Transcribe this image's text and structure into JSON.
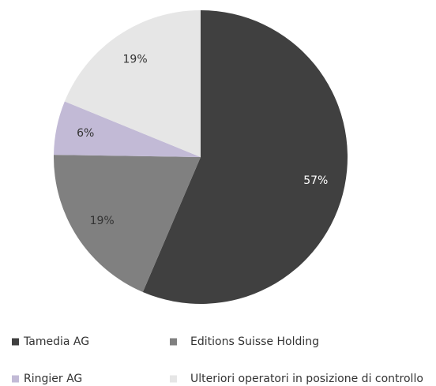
{
  "chart_data": {
    "type": "pie",
    "categories": [
      "Tamedia AG",
      "Editions Suisse Holding",
      "Ringier AG",
      "Ulteriori operatori in posizione di controllo"
    ],
    "values": [
      57,
      19,
      6,
      19
    ],
    "value_labels": [
      "57%",
      "19%",
      "6%",
      "19%"
    ],
    "colors": [
      "#404040",
      "#808080",
      "#c2bad6",
      "#e6e6e6"
    ],
    "label_colors": [
      "#ffffff",
      "#333333",
      "#333333",
      "#333333"
    ]
  }
}
